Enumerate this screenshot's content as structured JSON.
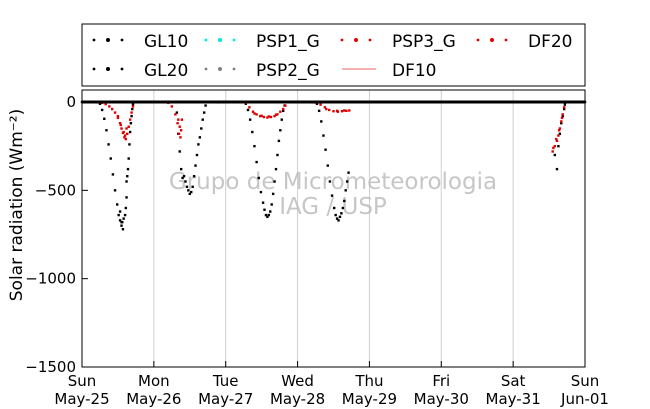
{
  "chart_data": {
    "type": "scatter",
    "title": "",
    "xlabel": "",
    "ylabel": "Solar radiation (Wm⁻²)",
    "ylim": [
      -1500,
      0
    ],
    "yticks": [
      0,
      -500,
      -1000,
      -1500
    ],
    "yticks_labels": [
      "0",
      "−500",
      "−1000",
      "−1500"
    ],
    "xlim_days": [
      0,
      7
    ],
    "xticks": [
      {
        "day": 0,
        "label1": "Sun",
        "label2": "May-25"
      },
      {
        "day": 1,
        "label1": "Mon",
        "label2": "May-26"
      },
      {
        "day": 2,
        "label1": "Tue",
        "label2": "May-27"
      },
      {
        "day": 3,
        "label1": "Wed",
        "label2": "May-28"
      },
      {
        "day": 4,
        "label1": "Thu",
        "label2": "May-29"
      },
      {
        "day": 5,
        "label1": "Fri",
        "label2": "May-30"
      },
      {
        "day": 6,
        "label1": "Sat",
        "label2": "May-31"
      },
      {
        "day": 7,
        "label1": "Sun",
        "label2": "Jun-01"
      }
    ],
    "grid": "vertical",
    "legend_position": "top",
    "watermark": [
      "Grupo de Micrometeorologia",
      "IAG / USP"
    ],
    "series": [
      {
        "name": "GL10",
        "color": "#000000",
        "marker": "dot",
        "points": [
          [
            0.25,
            -10
          ],
          [
            0.28,
            -45
          ],
          [
            0.31,
            -95
          ],
          [
            0.34,
            -160
          ],
          [
            0.37,
            -240
          ],
          [
            0.4,
            -320
          ],
          [
            0.43,
            -410
          ],
          [
            0.46,
            -500
          ],
          [
            0.49,
            -580
          ],
          [
            0.51,
            -640
          ],
          [
            0.53,
            -670
          ],
          [
            0.55,
            -700
          ],
          [
            0.57,
            -720
          ],
          [
            0.53,
            -620
          ],
          [
            0.55,
            -680
          ],
          [
            0.56,
            -680
          ],
          [
            0.58,
            -660
          ],
          [
            0.6,
            -640
          ],
          [
            0.61,
            -600
          ],
          [
            0.62,
            -540
          ],
          [
            0.62,
            -450
          ],
          [
            0.63,
            -420
          ],
          [
            0.64,
            -380
          ],
          [
            0.65,
            -320
          ],
          [
            0.66,
            -240
          ],
          [
            0.67,
            -170
          ],
          [
            0.68,
            -120
          ],
          [
            0.69,
            -80
          ],
          [
            0.7,
            -40
          ],
          [
            0.71,
            -15
          ],
          [
            1.32,
            -60
          ],
          [
            1.34,
            -180
          ],
          [
            1.36,
            -280
          ],
          [
            1.38,
            -380
          ],
          [
            1.4,
            -430
          ],
          [
            1.42,
            -420
          ],
          [
            1.44,
            -450
          ],
          [
            1.46,
            -480
          ],
          [
            1.48,
            -500
          ],
          [
            1.5,
            -520
          ],
          [
            1.52,
            -510
          ],
          [
            1.54,
            -480
          ],
          [
            1.56,
            -420
          ],
          [
            1.58,
            -360
          ],
          [
            1.6,
            -300
          ],
          [
            1.62,
            -240
          ],
          [
            1.64,
            -200
          ],
          [
            1.66,
            -150
          ],
          [
            1.68,
            -100
          ],
          [
            1.7,
            -60
          ],
          [
            1.72,
            -20
          ],
          [
            2.28,
            -10
          ],
          [
            2.31,
            -45
          ],
          [
            2.34,
            -100
          ],
          [
            2.37,
            -170
          ],
          [
            2.4,
            -250
          ],
          [
            2.43,
            -340
          ],
          [
            2.46,
            -430
          ],
          [
            2.49,
            -510
          ],
          [
            2.52,
            -570
          ],
          [
            2.54,
            -610
          ],
          [
            2.56,
            -640
          ],
          [
            2.58,
            -650
          ],
          [
            2.6,
            -640
          ],
          [
            2.62,
            -620
          ],
          [
            2.64,
            -580
          ],
          [
            2.66,
            -520
          ],
          [
            2.68,
            -450
          ],
          [
            2.7,
            -380
          ],
          [
            2.72,
            -300
          ],
          [
            2.74,
            -220
          ],
          [
            2.76,
            -160
          ],
          [
            2.78,
            -100
          ],
          [
            2.8,
            -50
          ],
          [
            2.82,
            -20
          ],
          [
            3.27,
            -10
          ],
          [
            3.3,
            -50
          ],
          [
            3.33,
            -110
          ],
          [
            3.36,
            -190
          ],
          [
            3.39,
            -270
          ],
          [
            3.42,
            -360
          ],
          [
            3.45,
            -450
          ],
          [
            3.48,
            -530
          ],
          [
            3.51,
            -600
          ],
          [
            3.53,
            -640
          ],
          [
            3.55,
            -660
          ],
          [
            3.57,
            -670
          ],
          [
            3.59,
            -650
          ],
          [
            3.61,
            -630
          ],
          [
            3.63,
            -600
          ],
          [
            3.65,
            -560
          ],
          [
            3.67,
            -500
          ],
          [
            3.69,
            -450
          ],
          [
            3.71,
            -400
          ],
          [
            6.58,
            -300
          ],
          [
            6.61,
            -380
          ],
          [
            6.63,
            -250
          ],
          [
            6.65,
            -180
          ],
          [
            6.67,
            -120
          ],
          [
            6.69,
            -80
          ],
          [
            6.71,
            -40
          ],
          [
            6.72,
            -15
          ]
        ]
      },
      {
        "name": "GL20",
        "color": "#000000",
        "marker": "dot",
        "points": [
          [
            0.0,
            0
          ],
          [
            0.1,
            0
          ],
          [
            0.2,
            -2
          ],
          [
            1.9,
            -2
          ],
          [
            2.1,
            0
          ],
          [
            3.0,
            0
          ],
          [
            3.2,
            -2
          ],
          [
            4.0,
            0
          ],
          [
            5.0,
            0
          ],
          [
            6.0,
            0
          ],
          [
            7.0,
            0
          ]
        ]
      },
      {
        "name": "PSP1_G",
        "color": "#00e5e5",
        "marker": "dot",
        "points": []
      },
      {
        "name": "PSP2_G",
        "color": "#808080",
        "marker": "dot",
        "points": []
      },
      {
        "name": "PSP3_G",
        "color": "#e00000",
        "marker": "dot",
        "points": [
          [
            0.28,
            -5
          ],
          [
            0.33,
            -12
          ],
          [
            0.38,
            -25
          ],
          [
            0.42,
            -40
          ],
          [
            0.46,
            -60
          ],
          [
            0.5,
            -90
          ],
          [
            0.53,
            -120
          ],
          [
            0.55,
            -150
          ],
          [
            0.57,
            -175
          ],
          [
            0.59,
            -200
          ],
          [
            0.61,
            -210
          ],
          [
            0.63,
            -180
          ],
          [
            0.65,
            -140
          ],
          [
            0.67,
            -100
          ],
          [
            0.69,
            -60
          ],
          [
            0.71,
            -25
          ],
          [
            1.2,
            -5
          ],
          [
            1.25,
            -25
          ],
          [
            1.3,
            -70
          ],
          [
            1.33,
            -120
          ],
          [
            1.35,
            -180
          ],
          [
            1.37,
            -200
          ],
          [
            1.38,
            -160
          ],
          [
            1.39,
            -100
          ],
          [
            2.28,
            -5
          ],
          [
            2.33,
            -30
          ],
          [
            2.38,
            -55
          ],
          [
            2.43,
            -70
          ],
          [
            2.48,
            -80
          ],
          [
            2.53,
            -85
          ],
          [
            2.58,
            -88
          ],
          [
            2.63,
            -85
          ],
          [
            2.68,
            -80
          ],
          [
            2.72,
            -70
          ],
          [
            2.76,
            -55
          ],
          [
            2.8,
            -40
          ],
          [
            2.83,
            -20
          ],
          [
            3.25,
            -3
          ],
          [
            3.32,
            -15
          ],
          [
            3.38,
            -30
          ],
          [
            3.44,
            -45
          ],
          [
            3.5,
            -52
          ],
          [
            3.56,
            -55
          ],
          [
            3.62,
            -52
          ],
          [
            3.68,
            -50
          ],
          [
            3.72,
            -48
          ],
          [
            6.55,
            -280
          ],
          [
            6.58,
            -250
          ],
          [
            6.61,
            -220
          ],
          [
            6.63,
            -190
          ],
          [
            6.65,
            -150
          ],
          [
            6.67,
            -110
          ],
          [
            6.69,
            -70
          ],
          [
            6.71,
            -30
          ]
        ]
      },
      {
        "name": "DF10",
        "color": "#f08080",
        "marker": "line",
        "points": []
      },
      {
        "name": "DF20",
        "color": "#e00000",
        "marker": "dot",
        "points": [
          [
            0.5,
            -80
          ],
          [
            0.54,
            -130
          ],
          [
            0.58,
            -170
          ],
          [
            0.6,
            -190
          ],
          [
            0.62,
            -150
          ],
          [
            1.34,
            -100
          ],
          [
            1.36,
            -140
          ],
          [
            2.4,
            -65
          ],
          [
            2.5,
            -78
          ],
          [
            2.6,
            -82
          ],
          [
            2.7,
            -72
          ],
          [
            3.4,
            -40
          ],
          [
            3.55,
            -50
          ],
          [
            3.65,
            -48
          ],
          [
            6.56,
            -260
          ],
          [
            6.6,
            -210
          ],
          [
            6.64,
            -160
          ],
          [
            6.68,
            -90
          ]
        ]
      }
    ]
  }
}
